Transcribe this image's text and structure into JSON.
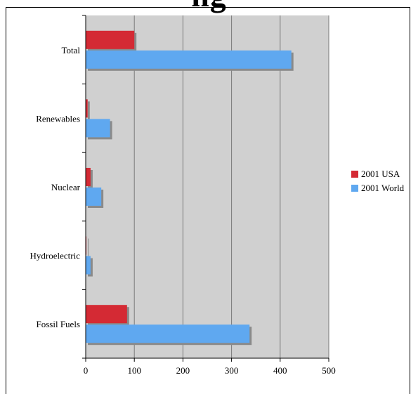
{
  "heading_fragment": "ng",
  "chart_data": {
    "type": "bar",
    "orientation": "horizontal",
    "categories": [
      "Total",
      "Renewables",
      "Nuclear",
      "Hydroelectric",
      "Fossil Fuels"
    ],
    "series": [
      {
        "name": "2001 USA",
        "color": "#d42a34",
        "values": [
          100,
          4,
          10,
          1,
          85
        ]
      },
      {
        "name": "2001 World",
        "color": "#5fa8f0",
        "values": [
          423,
          50,
          32,
          10,
          337
        ]
      }
    ],
    "x_ticks": [
      "0",
      "100",
      "200",
      "300",
      "400",
      "500"
    ],
    "xlim": [
      0,
      500
    ],
    "xlabel": "",
    "ylabel": "",
    "grid": true,
    "legend_position": "right",
    "plot_background": "#d0d0d0"
  }
}
